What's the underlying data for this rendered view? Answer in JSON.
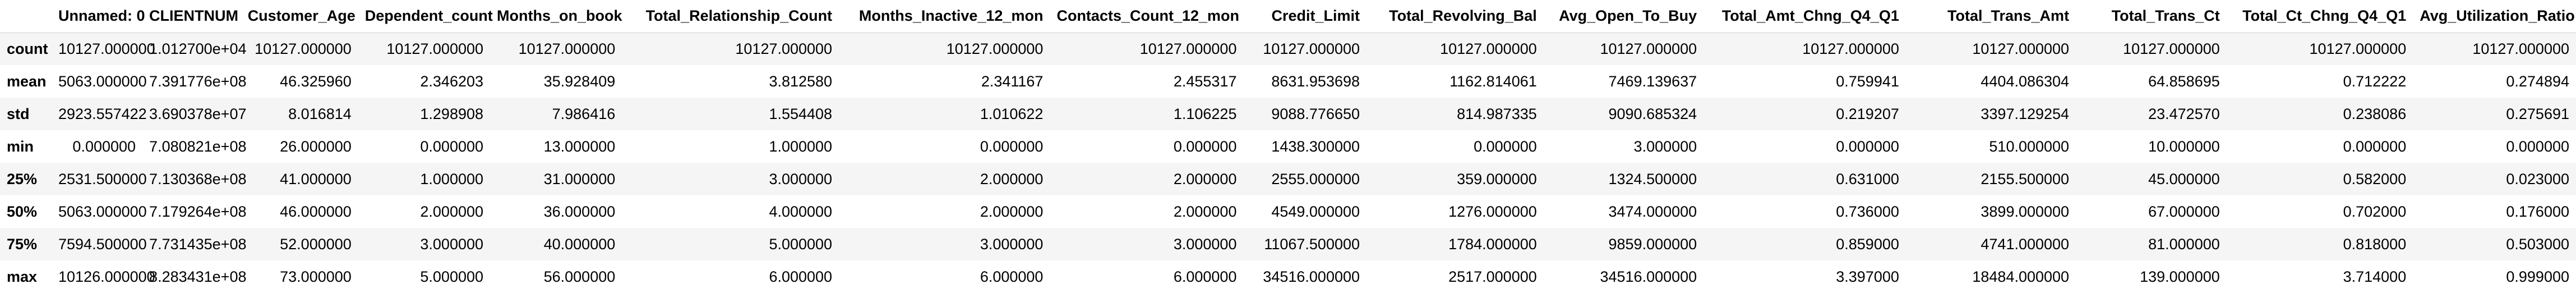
{
  "table": {
    "columns": [
      "Unnamed: 0",
      "CLIENTNUM",
      "Customer_Age",
      "Dependent_count",
      "Months_on_book",
      "Total_Relationship_Count",
      "Months_Inactive_12_mon",
      "Contacts_Count_12_mon",
      "Credit_Limit",
      "Total_Revolving_Bal",
      "Avg_Open_To_Buy",
      "Total_Amt_Chng_Q4_Q1",
      "Total_Trans_Amt",
      "Total_Trans_Ct",
      "Total_Ct_Chng_Q4_Q1",
      "Avg_Utilization_Ratio"
    ],
    "rows": [
      {
        "label": "count",
        "cells": [
          "10127.000000",
          "1.012700e+04",
          "10127.000000",
          "10127.000000",
          "10127.000000",
          "10127.000000",
          "10127.000000",
          "10127.000000",
          "10127.000000",
          "10127.000000",
          "10127.000000",
          "10127.000000",
          "10127.000000",
          "10127.000000",
          "10127.000000",
          "10127.000000"
        ]
      },
      {
        "label": "mean",
        "cells": [
          "5063.000000",
          "7.391776e+08",
          "46.325960",
          "2.346203",
          "35.928409",
          "3.812580",
          "2.341167",
          "2.455317",
          "8631.953698",
          "1162.814061",
          "7469.139637",
          "0.759941",
          "4404.086304",
          "64.858695",
          "0.712222",
          "0.274894"
        ]
      },
      {
        "label": "std",
        "cells": [
          "2923.557422",
          "3.690378e+07",
          "8.016814",
          "1.298908",
          "7.986416",
          "1.554408",
          "1.010622",
          "1.106225",
          "9088.776650",
          "814.987335",
          "9090.685324",
          "0.219207",
          "3397.129254",
          "23.472570",
          "0.238086",
          "0.275691"
        ]
      },
      {
        "label": "min",
        "cells": [
          "0.000000",
          "7.080821e+08",
          "26.000000",
          "0.000000",
          "13.000000",
          "1.000000",
          "0.000000",
          "0.000000",
          "1438.300000",
          "0.000000",
          "3.000000",
          "0.000000",
          "510.000000",
          "10.000000",
          "0.000000",
          "0.000000"
        ]
      },
      {
        "label": "25%",
        "cells": [
          "2531.500000",
          "7.130368e+08",
          "41.000000",
          "1.000000",
          "31.000000",
          "3.000000",
          "2.000000",
          "2.000000",
          "2555.000000",
          "359.000000",
          "1324.500000",
          "0.631000",
          "2155.500000",
          "45.000000",
          "0.582000",
          "0.023000"
        ]
      },
      {
        "label": "50%",
        "cells": [
          "5063.000000",
          "7.179264e+08",
          "46.000000",
          "2.000000",
          "36.000000",
          "4.000000",
          "2.000000",
          "2.000000",
          "4549.000000",
          "1276.000000",
          "3474.000000",
          "0.736000",
          "3899.000000",
          "67.000000",
          "0.702000",
          "0.176000"
        ]
      },
      {
        "label": "75%",
        "cells": [
          "7594.500000",
          "7.731435e+08",
          "52.000000",
          "3.000000",
          "40.000000",
          "5.000000",
          "3.000000",
          "3.000000",
          "11067.500000",
          "1784.000000",
          "9859.000000",
          "0.859000",
          "4741.000000",
          "81.000000",
          "0.818000",
          "0.503000"
        ]
      },
      {
        "label": "max",
        "cells": [
          "10126.000000",
          "8.283431e+08",
          "73.000000",
          "5.000000",
          "56.000000",
          "6.000000",
          "6.000000",
          "6.000000",
          "34516.000000",
          "2517.000000",
          "34516.000000",
          "3.397000",
          "18484.000000",
          "139.000000",
          "3.714000",
          "0.999000"
        ]
      }
    ]
  }
}
